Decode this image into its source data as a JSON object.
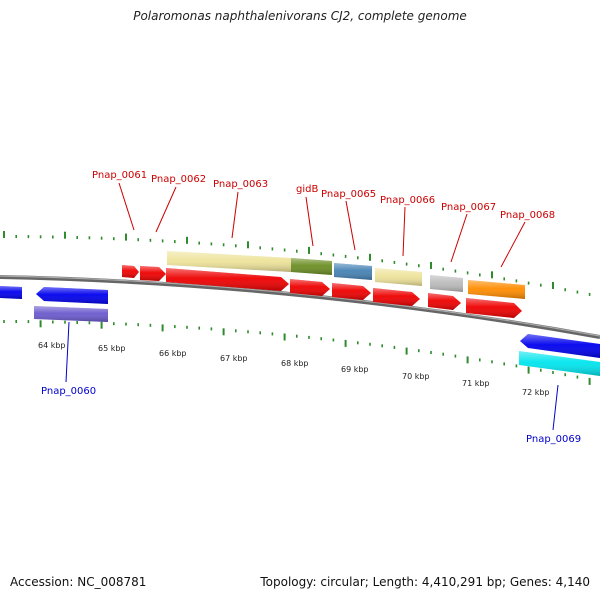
{
  "title": "Polaromonas naphthalenivorans CJ2, complete genome",
  "footer": {
    "accession": "Accession: NC_008781",
    "topology": "Topology: circular; Length: 4,410,291 bp; Genes: 4,140"
  },
  "colors": {
    "backbone": "#7a7a7a",
    "tick": "#2e8b2e",
    "label_forward": "#cc0000",
    "label_reverse": "#0000cc"
  },
  "scale_ticks": [
    "64 kbp",
    "65 kbp",
    "66 kbp",
    "67 kbp",
    "68 kbp",
    "69 kbp",
    "70 kbp",
    "71 kbp",
    "72 kbp"
  ],
  "gene_labels": [
    {
      "id": "Pnap_0060",
      "color": "#0000cc"
    },
    {
      "id": "Pnap_0061",
      "color": "#cc0000"
    },
    {
      "id": "Pnap_0062",
      "color": "#cc0000"
    },
    {
      "id": "Pnap_0063",
      "color": "#cc0000"
    },
    {
      "id": "gidB",
      "color": "#cc0000"
    },
    {
      "id": "Pnap_0065",
      "color": "#cc0000"
    },
    {
      "id": "Pnap_0066",
      "color": "#cc0000"
    },
    {
      "id": "Pnap_0067",
      "color": "#cc0000"
    },
    {
      "id": "Pnap_0068",
      "color": "#cc0000"
    },
    {
      "id": "Pnap_0069",
      "color": "#0000cc"
    }
  ],
  "feature_colors": {
    "cds_forward": "#ee0000",
    "cds_reverse": "#0000ee",
    "pale_yellow": "#eee39a",
    "olive": "#6b8e23",
    "steel_blue": "#4682b4",
    "gray": "#bbbbbb",
    "orange": "#ff8c00",
    "slate": "#6a5acd",
    "cyan": "#00e5ee"
  }
}
